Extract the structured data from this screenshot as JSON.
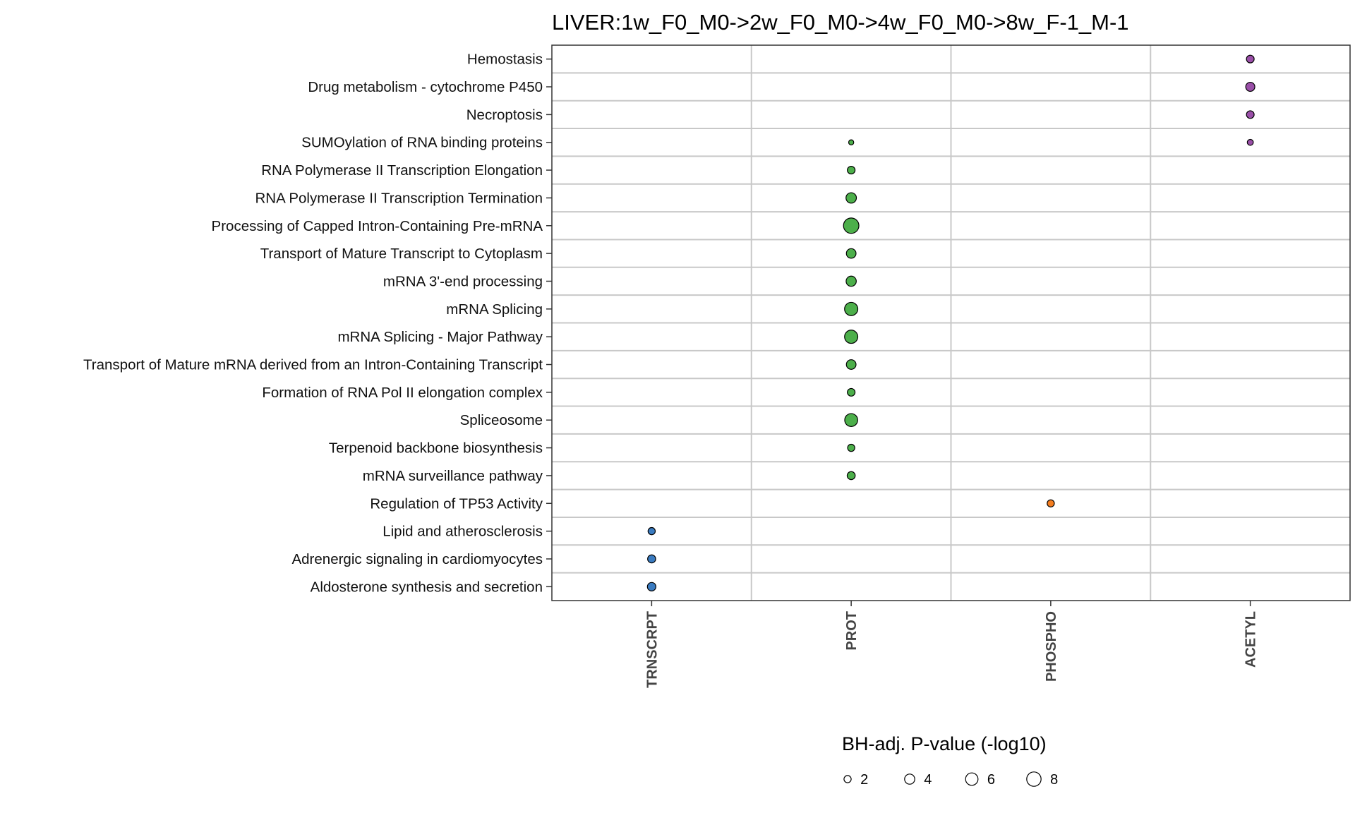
{
  "chart_data": {
    "type": "scatter",
    "title": "LIVER:1w_F0_M0->2w_F0_M0->4w_F0_M0->8w_F-1_M-1",
    "xlabel": "",
    "ylabel": "",
    "categories_x": [
      "TRNSCRPT",
      "PROT",
      "PHOSPHO",
      "ACETYL"
    ],
    "categories_y": [
      "Hemostasis",
      "Drug metabolism - cytochrome P450",
      "Necroptosis",
      "SUMOylation of RNA binding proteins",
      "RNA Polymerase II Transcription Elongation",
      "RNA Polymerase II Transcription Termination",
      "Processing of Capped Intron-Containing Pre-mRNA",
      "Transport of Mature Transcript to Cytoplasm",
      "mRNA 3'-end processing",
      "mRNA Splicing",
      "mRNA Splicing - Major Pathway",
      "Transport of Mature mRNA derived from an Intron-Containing Transcript",
      "Formation of RNA Pol II elongation complex ",
      "Spliceosome",
      "Terpenoid backbone biosynthesis",
      "mRNA surveillance pathway",
      "Regulation of TP53 Activity",
      "Lipid and atherosclerosis",
      "Adrenergic signaling in cardiomyocytes",
      "Aldosterone synthesis and secretion"
    ],
    "colors": {
      "TRNSCRPT": "#3A7BC0",
      "PROT": "#4CAF4A",
      "PHOSPHO": "#F47D1F",
      "ACETYL": "#9A4FA8"
    },
    "points": [
      {
        "y": "Hemostasis",
        "x": "ACETYL",
        "value": 2.3
      },
      {
        "y": "Drug metabolism - cytochrome P450",
        "x": "ACETYL",
        "value": 3.2
      },
      {
        "y": "Necroptosis",
        "x": "ACETYL",
        "value": 2.3
      },
      {
        "y": "SUMOylation of RNA binding proteins",
        "x": "ACETYL",
        "value": 1.4
      },
      {
        "y": "SUMOylation of RNA binding proteins",
        "x": "PROT",
        "value": 1.0
      },
      {
        "y": "RNA Polymerase II Transcription Elongation",
        "x": "PROT",
        "value": 2.3
      },
      {
        "y": "RNA Polymerase II Transcription Termination",
        "x": "PROT",
        "value": 4.2
      },
      {
        "y": "Processing of Capped Intron-Containing Pre-mRNA",
        "x": "PROT",
        "value": 9.2
      },
      {
        "y": "Transport of Mature Transcript to Cytoplasm",
        "x": "PROT",
        "value": 3.6
      },
      {
        "y": "mRNA 3'-end processing",
        "x": "PROT",
        "value": 4.0
      },
      {
        "y": "mRNA Splicing",
        "x": "PROT",
        "value": 6.8
      },
      {
        "y": "mRNA Splicing - Major Pathway",
        "x": "PROT",
        "value": 6.8
      },
      {
        "y": "Transport of Mature mRNA derived from an Intron-Containing Transcript",
        "x": "PROT",
        "value": 3.6
      },
      {
        "y": "Formation of RNA Pol II elongation complex ",
        "x": "PROT",
        "value": 2.3
      },
      {
        "y": "Spliceosome",
        "x": "PROT",
        "value": 6.5
      },
      {
        "y": "Terpenoid backbone biosynthesis",
        "x": "PROT",
        "value": 2.0
      },
      {
        "y": "mRNA surveillance pathway",
        "x": "PROT",
        "value": 2.5
      },
      {
        "y": "Regulation of TP53 Activity",
        "x": "PHOSPHO",
        "value": 2.0
      },
      {
        "y": "Lipid and atherosclerosis",
        "x": "TRNSCRPT",
        "value": 2.0
      },
      {
        "y": "Adrenergic signaling in cardiomyocytes",
        "x": "TRNSCRPT",
        "value": 2.5
      },
      {
        "y": "Aldosterone synthesis and secretion",
        "x": "TRNSCRPT",
        "value": 2.8
      }
    ],
    "legend": {
      "title": "BH-adj. P-value (-log10)",
      "values": [
        2,
        4,
        6,
        8
      ],
      "labels": [
        "2",
        "4",
        "6",
        "8"
      ],
      "placement": "bottom"
    },
    "grid": true
  }
}
